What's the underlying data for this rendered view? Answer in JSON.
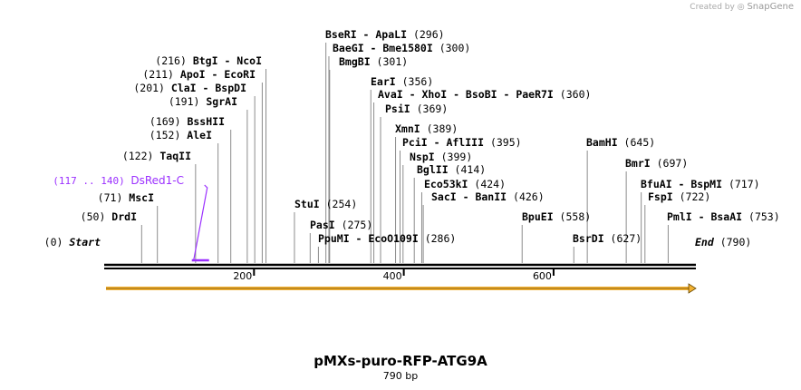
{
  "credit": {
    "created_by": "Created by",
    "brand": "SnapGene"
  },
  "map": {
    "title": "pMXs-puro-RFP-ATG9A",
    "length_label": "790 bp",
    "length_bp": 790,
    "ticks": [
      "200",
      "400",
      "600"
    ],
    "tick_values": [
      200,
      400,
      600
    ],
    "start": {
      "pos": 0,
      "pos_label": "(0)",
      "label": "Start"
    },
    "end": {
      "pos": 790,
      "pos_label": "(790)",
      "label": "End"
    },
    "feature": {
      "label": "DsRed1-C",
      "range_label": "(117 .. 140)",
      "start": 117,
      "end": 140,
      "color": "#9b30ff"
    },
    "arrow": {
      "start": 0,
      "end": 790,
      "color": "#f2b133"
    },
    "sites_left": [
      {
        "pos": 50,
        "pos_label": "(50)",
        "name": "DrdI"
      },
      {
        "pos": 71,
        "pos_label": "(71)",
        "name": "MscI"
      },
      {
        "pos": 122,
        "pos_label": "(122)",
        "name": "TaqII"
      },
      {
        "pos": 152,
        "pos_label": "(152)",
        "name": "AleI"
      },
      {
        "pos": 169,
        "pos_label": "(169)",
        "name": "BssHII"
      },
      {
        "pos": 191,
        "pos_label": "(191)",
        "name": "SgrAI"
      },
      {
        "pos": 201,
        "pos_label": "(201)",
        "name": "ClaI - BspDI"
      },
      {
        "pos": 211,
        "pos_label": "(211)",
        "name": "ApoI - EcoRI"
      },
      {
        "pos": 216,
        "pos_label": "(216)",
        "name": "BtgI - NcoI"
      }
    ],
    "sites_right": [
      {
        "pos": 254,
        "pos_label": "(254)",
        "name": "StuI"
      },
      {
        "pos": 275,
        "pos_label": "(275)",
        "name": "PasI"
      },
      {
        "pos": 286,
        "pos_label": "(286)",
        "name": "PpuMI - EcoO109I"
      },
      {
        "pos": 296,
        "pos_label": "(296)",
        "name": "BseRI - ApaLI"
      },
      {
        "pos": 300,
        "pos_label": "(300)",
        "name": "BaeGI - Bme1580I"
      },
      {
        "pos": 301,
        "pos_label": "(301)",
        "name": "BmgBI"
      },
      {
        "pos": 356,
        "pos_label": "(356)",
        "name": "EarI"
      },
      {
        "pos": 360,
        "pos_label": "(360)",
        "name": "AvaI - XhoI - BsoBI - PaeR7I"
      },
      {
        "pos": 369,
        "pos_label": "(369)",
        "name": "PsiI"
      },
      {
        "pos": 389,
        "pos_label": "(389)",
        "name": "XmnI"
      },
      {
        "pos": 395,
        "pos_label": "(395)",
        "name": "PciI - AflIII"
      },
      {
        "pos": 399,
        "pos_label": "(399)",
        "name": "NspI"
      },
      {
        "pos": 414,
        "pos_label": "(414)",
        "name": "BglII"
      },
      {
        "pos": 424,
        "pos_label": "(424)",
        "name": "Eco53kI"
      },
      {
        "pos": 426,
        "pos_label": "(426)",
        "name": "SacI - BanII"
      },
      {
        "pos": 558,
        "pos_label": "(558)",
        "name": "BpuEI"
      },
      {
        "pos": 627,
        "pos_label": "(627)",
        "name": "BsrDI"
      },
      {
        "pos": 645,
        "pos_label": "(645)",
        "name": "BamHI"
      },
      {
        "pos": 697,
        "pos_label": "(697)",
        "name": "BmrI"
      },
      {
        "pos": 717,
        "pos_label": "(717)",
        "name": "BfuAI - BspMI"
      },
      {
        "pos": 722,
        "pos_label": "(722)",
        "name": "FspI"
      },
      {
        "pos": 753,
        "pos_label": "(753)",
        "name": "PmlI - BsaAI"
      }
    ]
  }
}
